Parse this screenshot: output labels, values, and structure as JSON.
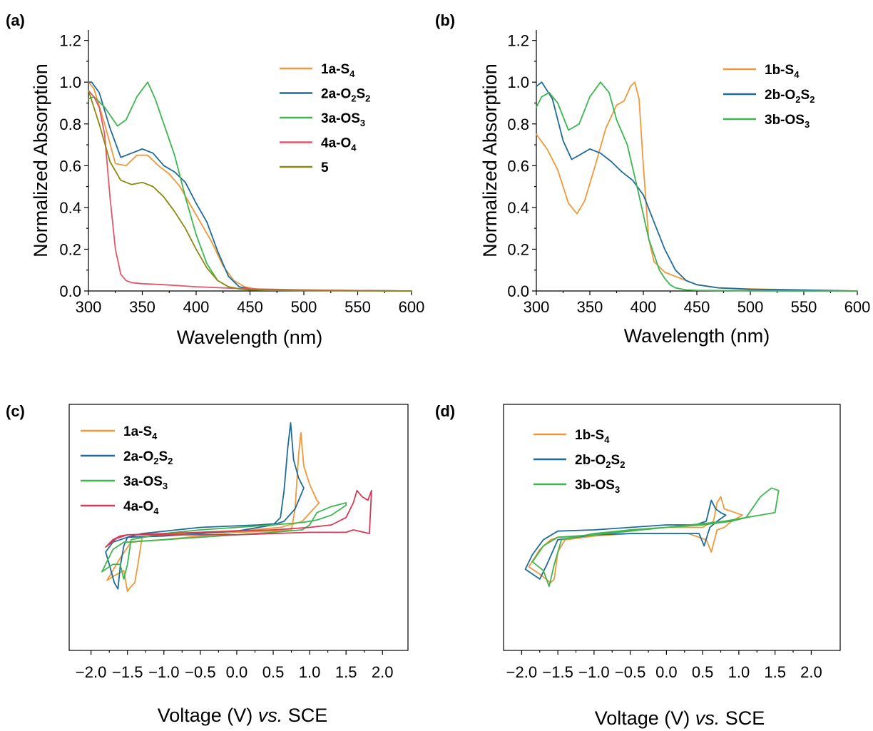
{
  "chart_data": [
    {
      "panel": "(a)",
      "type": "line",
      "xlabel": "Wavelength (nm)",
      "ylabel": "Normalized Absorption",
      "xlim": [
        300,
        600
      ],
      "ylim": [
        0,
        1.25
      ],
      "xticks": [
        300,
        350,
        400,
        450,
        500,
        550,
        600
      ],
      "yticks": [
        "0.0",
        "0.2",
        "0.4",
        "0.6",
        "0.8",
        "1.0",
        "1.2"
      ],
      "legend": "top-right",
      "series": [
        {
          "name": "1a-S4",
          "label_main": "1a-S",
          "label_sub": "4",
          "label_tail": "",
          "color": "#f0983a",
          "x": [
            300,
            305,
            315,
            325,
            335,
            345,
            355,
            365,
            375,
            385,
            395,
            405,
            415,
            425,
            435,
            445,
            455,
            470,
            500,
            550,
            600
          ],
          "y": [
            1.0,
            0.97,
            0.8,
            0.61,
            0.6,
            0.65,
            0.65,
            0.6,
            0.56,
            0.5,
            0.41,
            0.32,
            0.23,
            0.12,
            0.05,
            0.02,
            0.01,
            0.005,
            0.003,
            0.002,
            0.0
          ]
        },
        {
          "name": "2a-O2S2",
          "label_main": "2a-O",
          "label_sub": "2",
          "label_tail": "S",
          "label_sub2": "2",
          "color": "#1f6b9a",
          "x": [
            300,
            303,
            310,
            320,
            330,
            340,
            350,
            360,
            370,
            380,
            390,
            400,
            410,
            420,
            430,
            440,
            450,
            470,
            500,
            550,
            600
          ],
          "y": [
            1.0,
            1.0,
            0.95,
            0.78,
            0.64,
            0.66,
            0.68,
            0.66,
            0.6,
            0.57,
            0.52,
            0.42,
            0.33,
            0.19,
            0.07,
            0.02,
            0.01,
            0.005,
            0.003,
            0.002,
            0.0
          ]
        },
        {
          "name": "3a-OS3",
          "label_main": "3a-OS",
          "label_sub": "3",
          "label_tail": "",
          "color": "#3fb551",
          "x": [
            300,
            305,
            315,
            327,
            335,
            345,
            355,
            362,
            370,
            380,
            390,
            400,
            410,
            420,
            430,
            440,
            450,
            470,
            500,
            550,
            600
          ],
          "y": [
            0.92,
            0.93,
            0.88,
            0.79,
            0.82,
            0.93,
            1.0,
            0.92,
            0.8,
            0.65,
            0.45,
            0.27,
            0.13,
            0.05,
            0.02,
            0.01,
            0.005,
            0.003,
            0.002,
            0.001,
            0.0
          ]
        },
        {
          "name": "4a-O4",
          "label_main": "4a-O",
          "label_sub": "4",
          "label_tail": "",
          "color": "#e0576a",
          "x": [
            300,
            305,
            310,
            315,
            320,
            325,
            330,
            335,
            340,
            350,
            370,
            400,
            450,
            500,
            550,
            600
          ],
          "y": [
            0.96,
            0.93,
            0.88,
            0.75,
            0.45,
            0.2,
            0.08,
            0.05,
            0.04,
            0.035,
            0.03,
            0.02,
            0.01,
            0.005,
            0.002,
            0.0
          ]
        },
        {
          "name": "5",
          "label_main": "5",
          "label_sub": "",
          "label_tail": "",
          "color": "#8a8a12",
          "x": [
            300,
            310,
            320,
            330,
            340,
            350,
            360,
            370,
            380,
            390,
            400,
            410,
            420,
            430,
            440,
            450,
            470,
            500,
            550,
            600
          ],
          "y": [
            0.96,
            0.8,
            0.62,
            0.53,
            0.51,
            0.52,
            0.5,
            0.45,
            0.38,
            0.3,
            0.2,
            0.11,
            0.05,
            0.02,
            0.01,
            0.005,
            0.003,
            0.002,
            0.001,
            0.0
          ]
        }
      ]
    },
    {
      "panel": "(b)",
      "type": "line",
      "xlabel": "Wavelength (nm)",
      "ylabel": "Normalized Absorption",
      "xlim": [
        300,
        600
      ],
      "ylim": [
        0,
        1.25
      ],
      "xticks": [
        300,
        350,
        400,
        450,
        500,
        550,
        600
      ],
      "yticks": [
        "0.0",
        "0.2",
        "0.4",
        "0.6",
        "0.8",
        "1.0",
        "1.2"
      ],
      "legend": "top-right",
      "series": [
        {
          "name": "1b-S4",
          "label_main": "1b-S",
          "label_sub": "4",
          "label_tail": "",
          "color": "#f0983a",
          "x": [
            300,
            310,
            320,
            330,
            338,
            345,
            355,
            365,
            375,
            382,
            388,
            392,
            396,
            400,
            405,
            410,
            420,
            430,
            440,
            450,
            470,
            500,
            550,
            600
          ],
          "y": [
            0.75,
            0.68,
            0.58,
            0.42,
            0.37,
            0.43,
            0.6,
            0.78,
            0.89,
            0.91,
            0.98,
            1.0,
            0.92,
            0.6,
            0.25,
            0.14,
            0.09,
            0.07,
            0.05,
            0.03,
            0.015,
            0.01,
            0.005,
            0.0
          ]
        },
        {
          "name": "2b-O2S2",
          "label_main": "2b-O",
          "label_sub": "2",
          "label_tail": "S",
          "label_sub2": "2",
          "color": "#1f6b9a",
          "x": [
            300,
            305,
            315,
            325,
            333,
            340,
            350,
            360,
            370,
            380,
            390,
            400,
            410,
            420,
            430,
            440,
            450,
            470,
            500,
            550,
            600
          ],
          "y": [
            0.98,
            1.0,
            0.92,
            0.72,
            0.63,
            0.65,
            0.68,
            0.66,
            0.62,
            0.57,
            0.53,
            0.46,
            0.33,
            0.2,
            0.1,
            0.05,
            0.03,
            0.015,
            0.008,
            0.004,
            0.0
          ]
        },
        {
          "name": "3b-OS3",
          "label_main": "3b-OS",
          "label_sub": "3",
          "label_tail": "",
          "color": "#3fb551",
          "x": [
            300,
            305,
            312,
            320,
            330,
            340,
            350,
            360,
            368,
            375,
            385,
            395,
            405,
            415,
            420,
            425,
            430,
            440,
            450,
            470,
            500,
            550,
            600
          ],
          "y": [
            0.88,
            0.93,
            0.95,
            0.9,
            0.77,
            0.8,
            0.93,
            1.0,
            0.95,
            0.82,
            0.7,
            0.48,
            0.25,
            0.1,
            0.06,
            0.03,
            0.015,
            0.005,
            0.003,
            0.002,
            0.001,
            0.0,
            0.0
          ]
        }
      ]
    },
    {
      "panel": "(c)",
      "type": "line",
      "xlabel_main": "Voltage (V) ",
      "xlabel_italic": "vs.",
      "xlabel_tail": " SCE",
      "xlim": [
        -2.3,
        2.35
      ],
      "ylim": [
        -1.0,
        1.0
      ],
      "xticks": [
        "−2.0",
        "−1.5",
        "−1.0",
        "−0.5",
        "0.0",
        "0.5",
        "1.0",
        "1.5",
        "2.0"
      ],
      "xtick_values": [
        -2.0,
        -1.5,
        -1.0,
        -0.5,
        0.0,
        0.5,
        1.0,
        1.5,
        2.0
      ],
      "yaxis_visible": false,
      "legend": "top-left",
      "series": [
        {
          "name": "1a-S4",
          "label_main": "1a-S",
          "label_sub": "4",
          "label_tail": "",
          "color": "#f0983a",
          "x": [
            -1.78,
            -1.6,
            -1.45,
            -1.4,
            -1.35,
            -1.3,
            -1.0,
            -0.5,
            0.0,
            0.5,
            0.75,
            0.8,
            0.85,
            0.88,
            0.92,
            1.0,
            1.1,
            1.13,
            0.9,
            0.8,
            0.72,
            0.6,
            0.2,
            -0.5,
            -1.0,
            -1.3,
            -1.35,
            -1.4,
            -1.45,
            -1.5,
            -1.55,
            -1.7,
            -1.78
          ],
          "y": [
            -0.43,
            -0.25,
            -0.12,
            -0.12,
            -0.11,
            -0.11,
            -0.1,
            -0.07,
            -0.04,
            -0.03,
            -0.02,
            0.15,
            0.6,
            0.77,
            0.5,
            0.35,
            0.22,
            0.2,
            0.05,
            0.03,
            0.02,
            0.0,
            -0.02,
            -0.04,
            -0.06,
            -0.08,
            -0.28,
            -0.45,
            -0.48,
            -0.52,
            -0.35,
            -0.4,
            -0.43
          ]
        },
        {
          "name": "2a-O2S2",
          "label_main": "2a-O",
          "label_sub": "2",
          "label_tail": "S",
          "label_sub2": "2",
          "color": "#1f6b9a",
          "x": [
            -1.8,
            -1.7,
            -1.6,
            -1.5,
            -1.0,
            -0.5,
            0.0,
            0.3,
            0.5,
            0.6,
            0.65,
            0.7,
            0.74,
            0.78,
            0.85,
            0.92,
            0.8,
            0.65,
            0.55,
            0.3,
            -0.5,
            -1.3,
            -1.5,
            -1.55,
            -1.6,
            -1.63,
            -1.68,
            -1.75,
            -1.8
          ],
          "y": [
            -0.2,
            -0.12,
            -0.1,
            -0.08,
            -0.07,
            -0.05,
            -0.03,
            0.0,
            0.02,
            0.08,
            0.3,
            0.65,
            0.85,
            0.55,
            0.4,
            0.32,
            0.15,
            0.05,
            0.03,
            0.02,
            0.0,
            -0.05,
            -0.08,
            -0.15,
            -0.32,
            -0.5,
            -0.45,
            -0.3,
            -0.2
          ]
        },
        {
          "name": "3a-OS3",
          "label_main": "3a-OS",
          "label_sub": "3",
          "label_tail": "",
          "color": "#3fb551",
          "x": [
            -1.85,
            -1.7,
            -1.55,
            -1.5,
            -1.0,
            -0.5,
            0.0,
            0.5,
            0.9,
            1.0,
            1.1,
            1.3,
            1.5,
            1.5,
            1.3,
            1.1,
            0.9,
            0.5,
            0.0,
            -0.5,
            -1.0,
            -1.45,
            -1.5,
            -1.55,
            -1.6,
            -1.7,
            -1.85
          ],
          "y": [
            -0.36,
            -0.18,
            -0.12,
            -0.12,
            -0.1,
            -0.08,
            -0.06,
            -0.04,
            -0.02,
            0.02,
            0.12,
            0.17,
            0.2,
            0.18,
            0.1,
            0.06,
            0.04,
            0.02,
            0.0,
            -0.02,
            -0.05,
            -0.1,
            -0.3,
            -0.42,
            -0.3,
            -0.3,
            -0.36
          ]
        },
        {
          "name": "4a-O4",
          "label_main": "4a-O",
          "label_sub": "4",
          "label_tail": "",
          "color": "#d43a55",
          "x": [
            -1.8,
            -1.7,
            -1.6,
            -1.5,
            -1.0,
            -0.5,
            0.0,
            0.5,
            1.0,
            1.3,
            1.5,
            1.6,
            1.65,
            1.72,
            1.8,
            1.85,
            1.82,
            1.6,
            1.5,
            1.3,
            1.0,
            0.5,
            0.0,
            -0.5,
            -1.0,
            -1.5,
            -1.65,
            -1.8
          ],
          "y": [
            -0.16,
            -0.1,
            -0.07,
            -0.06,
            -0.05,
            -0.04,
            -0.03,
            -0.02,
            0.0,
            0.02,
            0.08,
            0.2,
            0.3,
            0.25,
            0.22,
            0.3,
            -0.05,
            -0.02,
            -0.04,
            -0.04,
            -0.04,
            -0.05,
            -0.06,
            -0.06,
            -0.06,
            -0.06,
            -0.09,
            -0.16
          ]
        }
      ]
    },
    {
      "panel": "(d)",
      "type": "line",
      "xlabel_main": "Voltage (V) ",
      "xlabel_italic": "vs.",
      "xlabel_tail": " SCE",
      "xlim": [
        -2.25,
        2.4
      ],
      "ylim": [
        -1.0,
        1.0
      ],
      "xticks": [
        "−2.0",
        "−1.5",
        "−1.0",
        "−0.5",
        "0.0",
        "0.5",
        "1.0",
        "1.5",
        "2.0"
      ],
      "xtick_values": [
        -2.0,
        -1.5,
        -1.0,
        -0.5,
        0.0,
        0.5,
        1.0,
        1.5,
        2.0
      ],
      "yaxis_visible": false,
      "legend": "top-left",
      "series": [
        {
          "name": "1b-S4",
          "label_main": "1b-S",
          "label_sub": "4",
          "label_tail": "",
          "color": "#f0983a",
          "x": [
            -1.9,
            -1.75,
            -1.6,
            -1.5,
            -1.0,
            -0.5,
            0.0,
            0.5,
            0.65,
            0.7,
            0.75,
            0.8,
            0.95,
            1.05,
            0.9,
            0.8,
            0.7,
            0.62,
            0.55,
            0.3,
            -0.5,
            -1.0,
            -1.4,
            -1.5,
            -1.55,
            -1.6,
            -1.75,
            -1.9
          ],
          "y": [
            -0.32,
            -0.18,
            -0.1,
            -0.08,
            -0.07,
            -0.02,
            0.0,
            0.0,
            0.05,
            0.2,
            0.25,
            0.15,
            0.12,
            0.1,
            0.05,
            0.0,
            -0.02,
            -0.2,
            -0.1,
            -0.05,
            -0.05,
            -0.07,
            -0.1,
            -0.2,
            -0.42,
            -0.45,
            -0.38,
            -0.32
          ]
        },
        {
          "name": "2b-O2S2",
          "label_main": "2b-O",
          "label_sub": "2",
          "label_tail": "S",
          "label_sub2": "2",
          "color": "#1f6b9a",
          "x": [
            -1.95,
            -1.85,
            -1.7,
            -1.5,
            -1.0,
            -0.5,
            0.0,
            0.4,
            0.55,
            0.62,
            0.68,
            0.75,
            0.82,
            0.7,
            0.6,
            0.52,
            0.45,
            0.3,
            -0.5,
            -1.0,
            -1.5,
            -1.65,
            -1.75,
            -1.85,
            -1.95
          ],
          "y": [
            -0.34,
            -0.22,
            -0.1,
            -0.03,
            -0.02,
            0.0,
            0.02,
            0.02,
            0.05,
            0.22,
            0.15,
            0.12,
            0.1,
            0.05,
            0.0,
            -0.15,
            -0.05,
            -0.05,
            -0.05,
            -0.06,
            -0.1,
            -0.3,
            -0.42,
            -0.38,
            -0.34
          ]
        },
        {
          "name": "3b-OS3",
          "label_main": "3b-OS",
          "label_sub": "3",
          "label_tail": "",
          "color": "#3fb551",
          "x": [
            -1.85,
            -1.7,
            -1.5,
            -1.0,
            -0.5,
            0.0,
            0.5,
            0.9,
            1.1,
            1.3,
            1.45,
            1.55,
            1.5,
            1.3,
            1.1,
            0.8,
            0.5,
            0.0,
            -0.5,
            -1.0,
            -1.45,
            -1.55,
            -1.62,
            -1.7,
            -1.85
          ],
          "y": [
            -0.28,
            -0.15,
            -0.08,
            -0.06,
            -0.03,
            0.0,
            0.02,
            0.05,
            0.08,
            0.25,
            0.32,
            0.3,
            0.12,
            0.1,
            0.08,
            0.05,
            0.03,
            0.0,
            -0.02,
            -0.05,
            -0.1,
            -0.3,
            -0.48,
            -0.35,
            -0.28
          ]
        }
      ]
    }
  ]
}
